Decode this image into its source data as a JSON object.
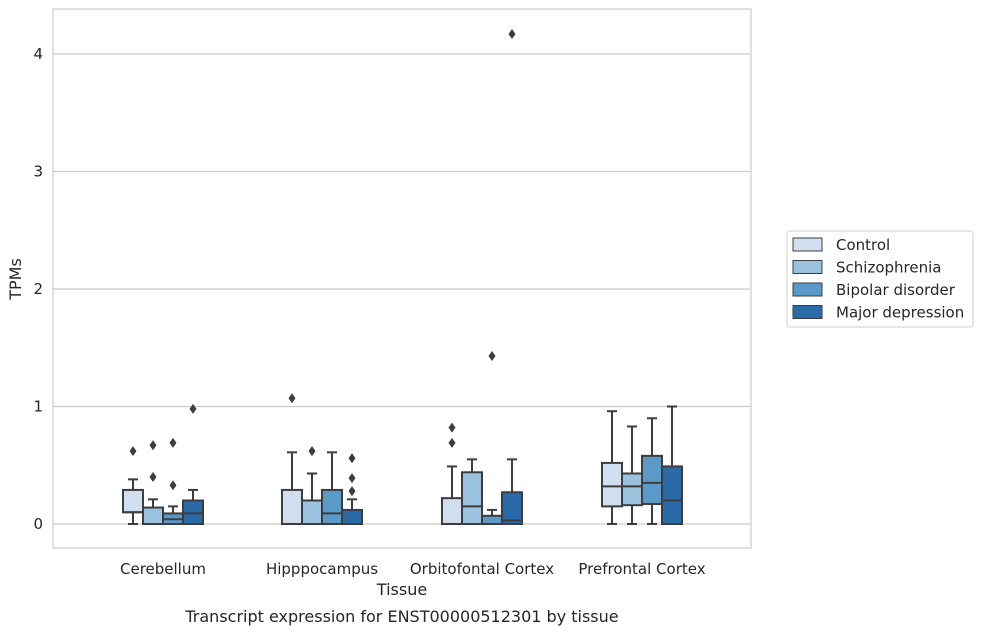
{
  "caption": "Transcript expression for ENST00000512301 by tissue",
  "chart_data": {
    "type": "boxplot",
    "xlabel": "Tissue",
    "ylabel": "TPMs",
    "ylim": [
      -0.2,
      4.38
    ],
    "yticks": [
      0,
      1,
      2,
      3,
      4
    ],
    "grid": "horizontal",
    "legend_position": "right",
    "categories": [
      "Cerebellum",
      "Hipppocampus",
      "Orbitofontal Cortex",
      "Prefrontal Cortex"
    ],
    "series": [
      {
        "name": "Control",
        "color": "#cfdfef",
        "boxes": [
          {
            "whislo": 0.0,
            "q1": 0.1,
            "med": 0.1,
            "q3": 0.29,
            "whishi": 0.38,
            "fliers": [
              0.62
            ]
          },
          {
            "whislo": 0.0,
            "q1": 0.0,
            "med": 0.0,
            "q3": 0.29,
            "whishi": 0.61,
            "fliers": [
              1.07
            ]
          },
          {
            "whislo": 0.0,
            "q1": 0.0,
            "med": 0.0,
            "q3": 0.22,
            "whishi": 0.49,
            "fliers": [
              0.69,
              0.82
            ]
          },
          {
            "whislo": 0.0,
            "q1": 0.15,
            "med": 0.32,
            "q3": 0.52,
            "whishi": 0.96,
            "fliers": []
          }
        ]
      },
      {
        "name": "Schizophrenia",
        "color": "#9ac1dd",
        "boxes": [
          {
            "whislo": 0.0,
            "q1": 0.0,
            "med": 0.0,
            "q3": 0.14,
            "whishi": 0.21,
            "fliers": [
              0.4,
              0.67
            ]
          },
          {
            "whislo": 0.0,
            "q1": 0.0,
            "med": 0.0,
            "q3": 0.2,
            "whishi": 0.43,
            "fliers": [
              0.62
            ]
          },
          {
            "whislo": 0.0,
            "q1": 0.0,
            "med": 0.15,
            "q3": 0.44,
            "whishi": 0.55,
            "fliers": []
          },
          {
            "whislo": 0.0,
            "q1": 0.16,
            "med": 0.32,
            "q3": 0.43,
            "whishi": 0.83,
            "fliers": []
          }
        ]
      },
      {
        "name": "Bipolar disorder",
        "color": "#5b9ac8",
        "boxes": [
          {
            "whislo": 0.0,
            "q1": 0.0,
            "med": 0.04,
            "q3": 0.09,
            "whishi": 0.15,
            "fliers": [
              0.33,
              0.69
            ]
          },
          {
            "whislo": 0.0,
            "q1": 0.0,
            "med": 0.09,
            "q3": 0.29,
            "whishi": 0.61,
            "fliers": []
          },
          {
            "whislo": 0.0,
            "q1": 0.0,
            "med": 0.0,
            "q3": 0.07,
            "whishi": 0.12,
            "fliers": [
              1.43
            ]
          },
          {
            "whislo": 0.0,
            "q1": 0.17,
            "med": 0.35,
            "q3": 0.58,
            "whishi": 0.9,
            "fliers": []
          }
        ]
      },
      {
        "name": "Major depression",
        "color": "#2a6aa9",
        "boxes": [
          {
            "whislo": 0.0,
            "q1": 0.0,
            "med": 0.09,
            "q3": 0.2,
            "whishi": 0.29,
            "fliers": [
              0.98
            ]
          },
          {
            "whislo": 0.0,
            "q1": 0.0,
            "med": 0.0,
            "q3": 0.12,
            "whishi": 0.21,
            "fliers": [
              0.28,
              0.39,
              0.56
            ]
          },
          {
            "whislo": 0.0,
            "q1": 0.0,
            "med": 0.03,
            "q3": 0.27,
            "whishi": 0.55,
            "fliers": [
              4.17
            ]
          },
          {
            "whislo": 0.0,
            "q1": 0.0,
            "med": 0.2,
            "q3": 0.49,
            "whishi": 1.0,
            "fliers": []
          }
        ]
      }
    ]
  }
}
